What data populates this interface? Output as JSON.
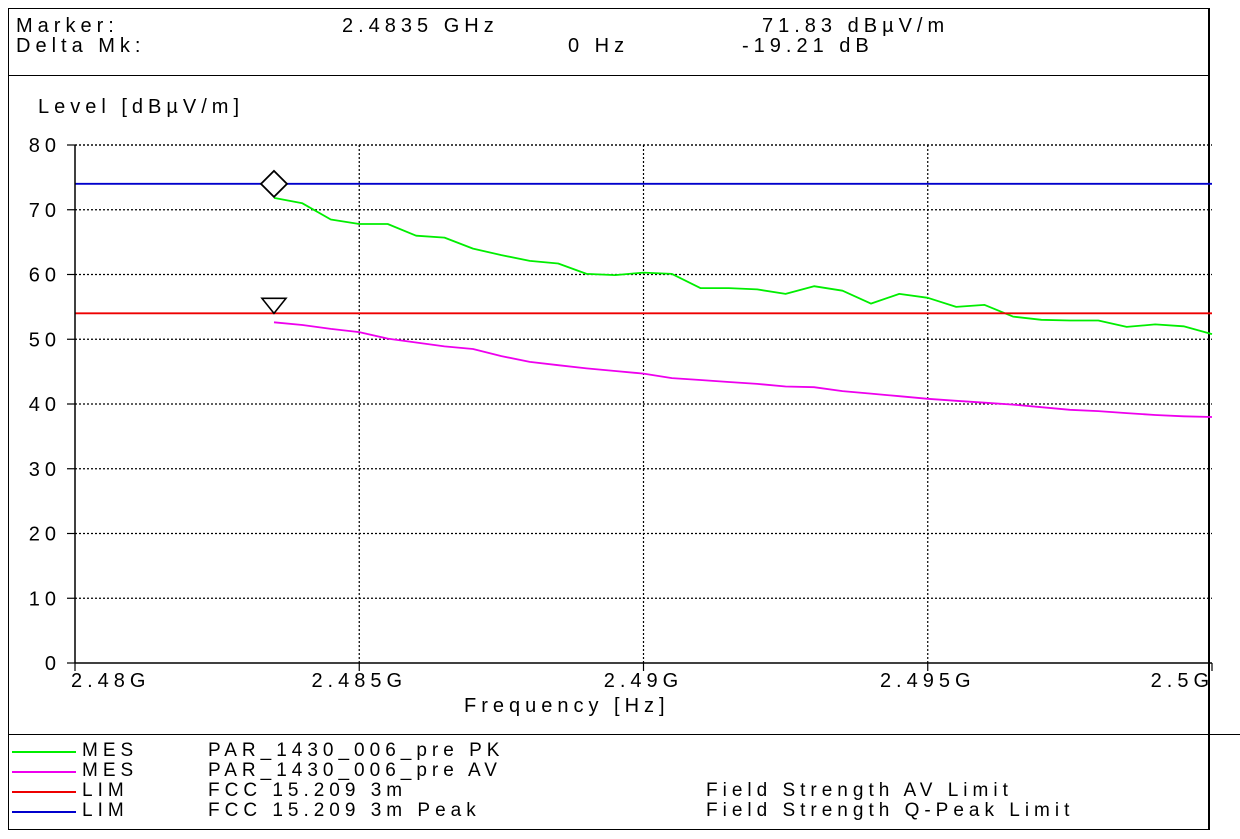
{
  "header": {
    "marker_label": "Marker:",
    "marker_freq": "2.4835 GHz",
    "marker_level": "71.83 dBµV/m",
    "delta_label": "Delta Mk:",
    "delta_freq": "0 Hz",
    "delta_level": "-19.21 dB"
  },
  "legend": [
    {
      "kind": "MES",
      "name": "PAR_1430_006_pre PK",
      "desc": "",
      "color": "#00ee00"
    },
    {
      "kind": "MES",
      "name": "PAR_1430_006_pre AV",
      "desc": "",
      "color": "#ee00ee"
    },
    {
      "kind": "LIM",
      "name": "FCC 15.209 3m",
      "desc": "Field Strength AV Limit",
      "color": "#ee0000"
    },
    {
      "kind": "LIM",
      "name": "FCC 15.209 3m Peak",
      "desc": "Field Strength Q-Peak Limit",
      "color": "#0000cc"
    }
  ],
  "chart_data": {
    "type": "line",
    "xlabel": "Frequency [Hz]",
    "ylabel": "Level [dBµV/m]",
    "xlim": [
      2.48,
      2.5
    ],
    "ylim": [
      0,
      80
    ],
    "x_ticks": [
      2.48,
      2.485,
      2.49,
      2.495,
      2.5
    ],
    "x_tick_labels": [
      "2.48G",
      "2.485G",
      "2.49G",
      "2.495G",
      "2.5G"
    ],
    "y_ticks": [
      0,
      10,
      20,
      30,
      40,
      50,
      60,
      70,
      80
    ],
    "y_tick_labels": [
      "0",
      "10",
      "20",
      "30",
      "40",
      "50",
      "60",
      "70",
      "80"
    ],
    "grid": true,
    "series": [
      {
        "name": "PAR_1430_006_pre PK",
        "color": "#00ee00",
        "x": [
          2.4835,
          2.484,
          2.4845,
          2.485,
          2.4855,
          2.486,
          2.4865,
          2.487,
          2.4875,
          2.488,
          2.4885,
          2.489,
          2.4895,
          2.49,
          2.4905,
          2.491,
          2.4915,
          2.492,
          2.4925,
          2.493,
          2.4935,
          2.494,
          2.4945,
          2.495,
          2.4955,
          2.496,
          2.4965,
          2.497,
          2.4975,
          2.498,
          2.4985,
          2.499,
          2.4995,
          2.5
        ],
        "y": [
          71.83,
          71.0,
          68.5,
          67.8,
          67.8,
          66.0,
          65.7,
          64.0,
          63.0,
          62.1,
          61.7,
          60.1,
          59.9,
          60.3,
          60.1,
          57.9,
          57.9,
          57.7,
          57.0,
          58.2,
          57.5,
          55.5,
          57.0,
          56.4,
          55.0,
          55.3,
          53.5,
          53.0,
          52.9,
          52.9,
          51.9,
          52.3,
          52.0,
          50.8
        ]
      },
      {
        "name": "PAR_1430_006_pre AV",
        "color": "#ee00ee",
        "x": [
          2.4835,
          2.484,
          2.4845,
          2.485,
          2.4855,
          2.486,
          2.4865,
          2.487,
          2.4875,
          2.488,
          2.4885,
          2.489,
          2.4895,
          2.49,
          2.4905,
          2.491,
          2.4915,
          2.492,
          2.4925,
          2.493,
          2.4935,
          2.494,
          2.4945,
          2.495,
          2.4955,
          2.496,
          2.4965,
          2.497,
          2.4975,
          2.498,
          2.4985,
          2.499,
          2.4995,
          2.5
        ],
        "y": [
          52.62,
          52.2,
          51.6,
          51.1,
          50.1,
          49.5,
          48.9,
          48.5,
          47.4,
          46.5,
          46.0,
          45.5,
          45.1,
          44.7,
          44.0,
          43.7,
          43.4,
          43.1,
          42.7,
          42.6,
          42.0,
          41.6,
          41.2,
          40.8,
          40.5,
          40.2,
          39.9,
          39.5,
          39.1,
          38.9,
          38.6,
          38.3,
          38.1,
          38.0
        ]
      },
      {
        "name": "FCC 15.209 3m",
        "color": "#ee0000",
        "x": [
          2.48,
          2.5
        ],
        "y": [
          54,
          54
        ]
      },
      {
        "name": "FCC 15.209 3m Peak",
        "color": "#0000cc",
        "x": [
          2.48,
          2.5
        ],
        "y": [
          74,
          74
        ]
      }
    ],
    "markers": [
      {
        "shape": "diamond",
        "x": 2.4835,
        "y": 74
      },
      {
        "shape": "triangle-down",
        "x": 2.4835,
        "y": 54
      }
    ]
  }
}
